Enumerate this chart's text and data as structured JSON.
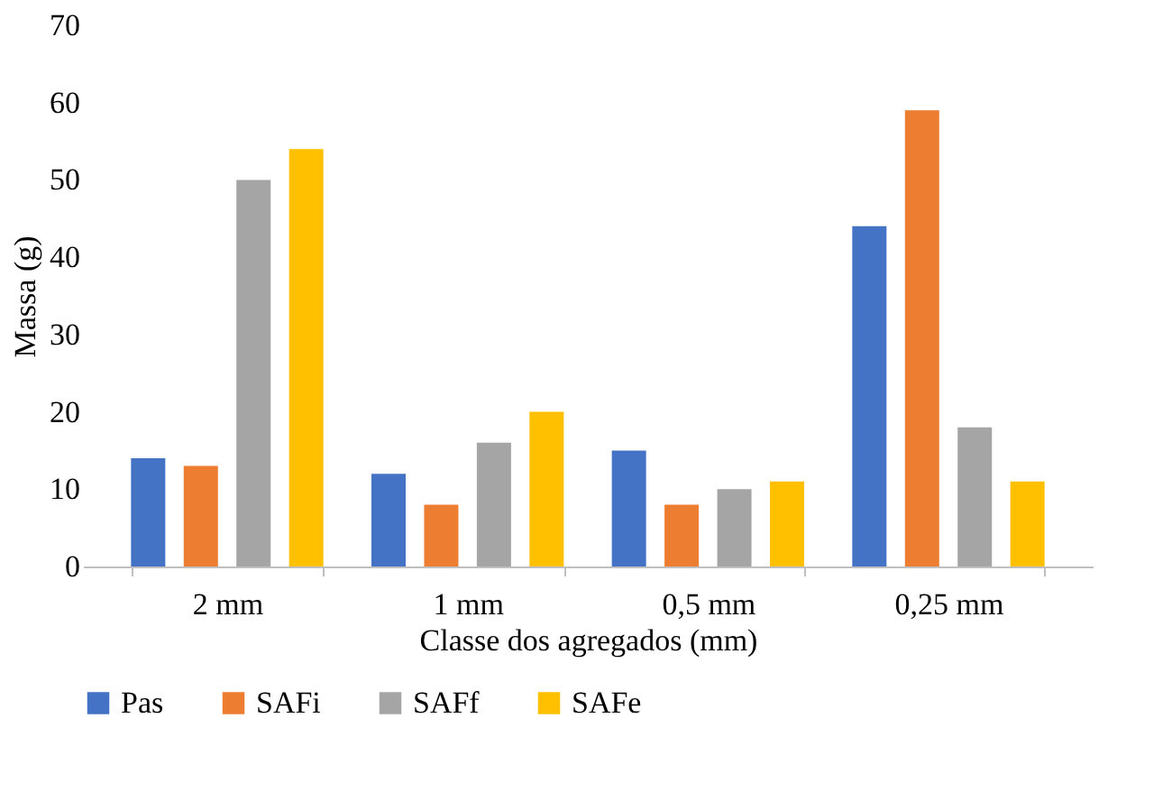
{
  "chart_data": {
    "type": "bar",
    "xlabel": "Classe dos agregados (mm)",
    "ylabel": "Massa (g)",
    "categories": [
      "2 mm",
      "1 mm",
      "0,5 mm",
      "0,25 mm"
    ],
    "series": [
      {
        "name": "Pas",
        "color": "#4472c4",
        "values": [
          14,
          12,
          15,
          44
        ]
      },
      {
        "name": "SAFi",
        "color": "#ed7d31",
        "values": [
          13,
          8,
          8,
          59
        ]
      },
      {
        "name": "SAFf",
        "color": "#a5a5a5",
        "values": [
          50,
          16,
          10,
          18
        ]
      },
      {
        "name": "SAFe",
        "color": "#ffc000",
        "values": [
          54,
          20,
          11,
          11
        ]
      }
    ],
    "ylim": [
      0,
      70
    ],
    "yticks": [
      0,
      10,
      20,
      30,
      40,
      50,
      60,
      70
    ],
    "grid": false,
    "legend": "bottom"
  }
}
